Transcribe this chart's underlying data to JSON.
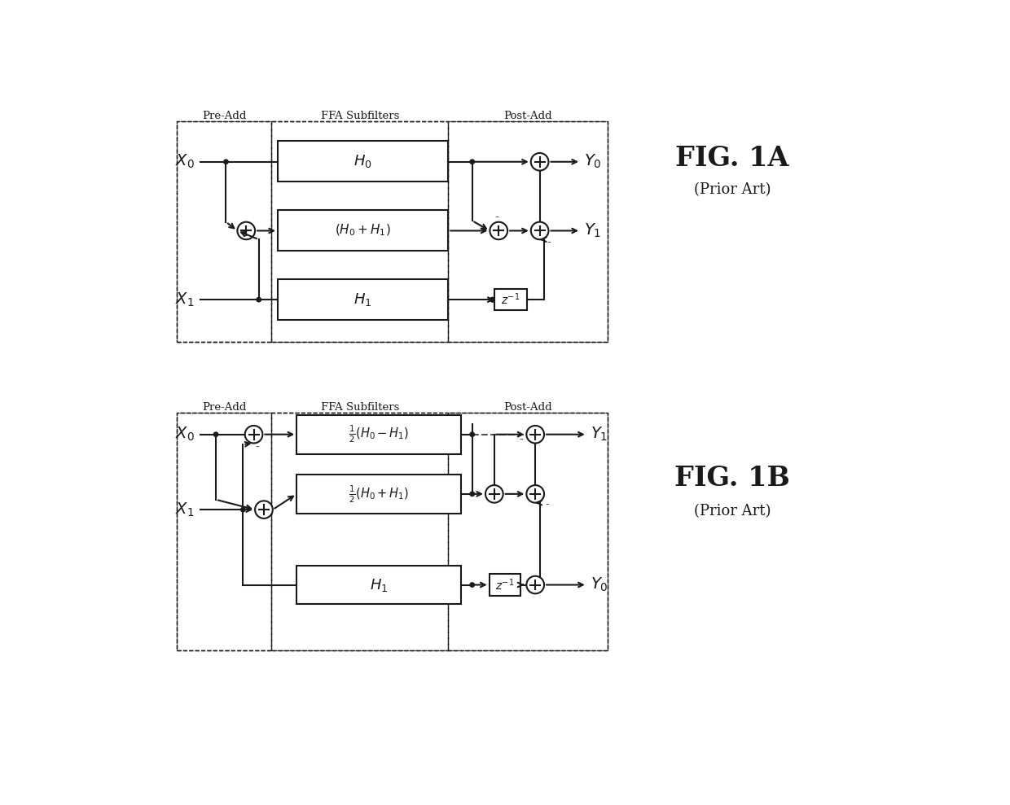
{
  "bg_color": "#ffffff",
  "lc": "#1a1a1a",
  "fig1a_label": "FIG. 1A",
  "fig1b_label": "FIG. 1B",
  "prior_art": "(Prior Art)",
  "fs_signal": 14,
  "fs_filter": 11,
  "fs_fig": 24,
  "fs_prior": 13,
  "fs_label": 9.5,
  "lw_main": 1.5,
  "lw_dash": 1.0,
  "circ_r": 14,
  "dot_r": 3.5
}
